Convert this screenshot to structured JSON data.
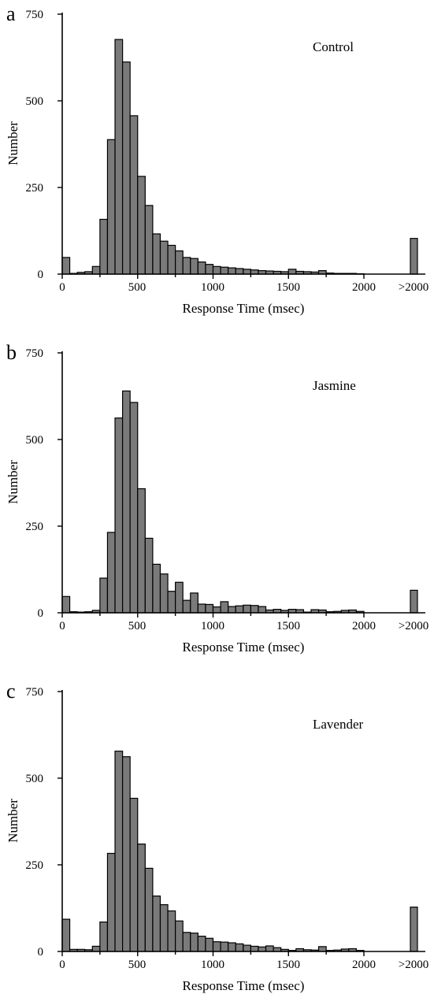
{
  "chart_data": [
    {
      "type": "bar",
      "panel_label": "a",
      "condition": "Control",
      "xlabel": "Response Time (msec)",
      "ylabel": "Number",
      "ylim": [
        0,
        750
      ],
      "yticks": [
        "0",
        "250",
        "500",
        "750"
      ],
      "xticks": [
        "0",
        "500",
        "1000",
        "1500",
        "2000",
        ">2000"
      ],
      "bin_width": 50,
      "bin_starts": [
        0,
        50,
        100,
        150,
        200,
        250,
        300,
        350,
        400,
        450,
        500,
        550,
        600,
        650,
        700,
        750,
        800,
        850,
        900,
        950,
        1000,
        1050,
        1100,
        1150,
        1200,
        1250,
        1300,
        1350,
        1400,
        1450,
        1500,
        1550,
        1600,
        1650,
        1700,
        1750,
        1800,
        1850,
        1900,
        1950
      ],
      "values": [
        48,
        2,
        5,
        7,
        22,
        158,
        388,
        677,
        612,
        457,
        282,
        198,
        116,
        95,
        83,
        67,
        48,
        45,
        35,
        28,
        22,
        20,
        18,
        16,
        14,
        12,
        10,
        9,
        8,
        7,
        14,
        8,
        7,
        6,
        10,
        3,
        2,
        2,
        2,
        1
      ],
      "overflow": {
        "label": ">2000",
        "value": 103
      }
    },
    {
      "type": "bar",
      "panel_label": "b",
      "condition": "Jasmine",
      "xlabel": "Response Time (msec)",
      "ylabel": "Number",
      "ylim": [
        0,
        750
      ],
      "yticks": [
        "0",
        "250",
        "500",
        "750"
      ],
      "xticks": [
        "0",
        "500",
        "1000",
        "1500",
        "2000",
        ">2000"
      ],
      "bin_width": 50,
      "bin_starts": [
        0,
        50,
        100,
        150,
        200,
        250,
        300,
        350,
        400,
        450,
        500,
        550,
        600,
        650,
        700,
        750,
        800,
        850,
        900,
        950,
        1000,
        1050,
        1100,
        1150,
        1200,
        1250,
        1300,
        1350,
        1400,
        1450,
        1500,
        1550,
        1600,
        1650,
        1700,
        1750,
        1800,
        1850,
        1900,
        1950
      ],
      "values": [
        47,
        3,
        2,
        3,
        7,
        100,
        232,
        562,
        640,
        607,
        358,
        215,
        140,
        112,
        62,
        88,
        36,
        57,
        25,
        24,
        17,
        32,
        18,
        20,
        22,
        21,
        18,
        8,
        10,
        7,
        10,
        9,
        2,
        9,
        8,
        3,
        4,
        7,
        8,
        4
      ],
      "overflow": {
        "label": ">2000",
        "value": 65
      }
    },
    {
      "type": "bar",
      "panel_label": "c",
      "condition": "Lavender",
      "xlabel": "Response Time (msec)",
      "ylabel": "Number",
      "ylim": [
        0,
        750
      ],
      "yticks": [
        "0",
        "250",
        "500",
        "750"
      ],
      "xticks": [
        "0",
        "500",
        "1000",
        "1500",
        "2000",
        ">2000"
      ],
      "bin_width": 50,
      "bin_starts": [
        0,
        50,
        100,
        150,
        200,
        250,
        300,
        350,
        400,
        450,
        500,
        550,
        600,
        650,
        700,
        750,
        800,
        850,
        900,
        950,
        1000,
        1050,
        1100,
        1150,
        1200,
        1250,
        1300,
        1350,
        1400,
        1450,
        1500,
        1550,
        1600,
        1650,
        1700,
        1750,
        1800,
        1850,
        1900,
        1950
      ],
      "values": [
        93,
        6,
        6,
        5,
        15,
        85,
        283,
        578,
        562,
        442,
        310,
        240,
        160,
        135,
        117,
        88,
        55,
        53,
        44,
        38,
        28,
        27,
        25,
        22,
        18,
        15,
        13,
        16,
        11,
        6,
        3,
        8,
        5,
        4,
        14,
        3,
        4,
        7,
        8,
        3
      ],
      "overflow": {
        "label": ">2000",
        "value": 128
      }
    }
  ],
  "colors": {
    "bar_fill": "#7a7a7a",
    "bar_stroke": "#000000",
    "axis": "#000000"
  }
}
